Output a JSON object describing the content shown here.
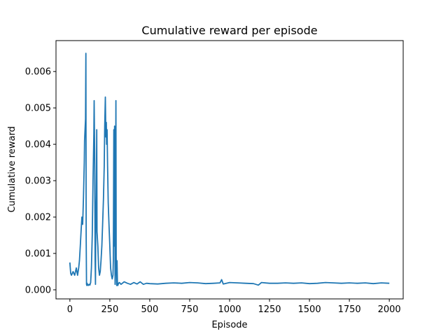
{
  "chart_data": {
    "type": "line",
    "title": "Cumulative reward per episode",
    "xlabel": "Episode",
    "ylabel": "Cumulative reward",
    "xlim": [
      -87,
      2087
    ],
    "ylim": [
      -0.00025,
      0.00685
    ],
    "x_ticks": [
      0,
      250,
      500,
      750,
      1000,
      1250,
      1500,
      1750,
      2000
    ],
    "x_tick_labels": [
      "0",
      "250",
      "500",
      "750",
      "1000",
      "1250",
      "1500",
      "1750",
      "2000"
    ],
    "y_ticks": [
      0.0,
      0.001,
      0.002,
      0.003,
      0.004,
      0.005,
      0.006
    ],
    "y_tick_labels": [
      "0.000",
      "0.001",
      "0.002",
      "0.003",
      "0.004",
      "0.005",
      "0.006"
    ],
    "grid": false,
    "legend": "none",
    "series": [
      {
        "color": "#1f77b4",
        "x": [
          0,
          5,
          10,
          20,
          30,
          40,
          48,
          55,
          60,
          65,
          70,
          75,
          80,
          85,
          90,
          92,
          95,
          98,
          100,
          102,
          104,
          106,
          108,
          110,
          115,
          120,
          125,
          130,
          135,
          140,
          145,
          150,
          152,
          155,
          158,
          160,
          162,
          165,
          168,
          170,
          175,
          180,
          185,
          190,
          195,
          200,
          205,
          210,
          215,
          218,
          222,
          225,
          228,
          230,
          233,
          236,
          240,
          245,
          250,
          255,
          260,
          265,
          270,
          272,
          275,
          278,
          280,
          283,
          285,
          288,
          290,
          293,
          295,
          298,
          300,
          305,
          310,
          320,
          340,
          360,
          380,
          400,
          420,
          440,
          460,
          480,
          500,
          550,
          600,
          650,
          700,
          750,
          800,
          850,
          900,
          940,
          950,
          960,
          1000,
          1050,
          1100,
          1150,
          1180,
          1200,
          1250,
          1300,
          1350,
          1400,
          1450,
          1500,
          1550,
          1600,
          1650,
          1700,
          1750,
          1800,
          1850,
          1900,
          1950,
          2000
        ],
        "y": [
          0.00075,
          0.00045,
          0.0004,
          0.0005,
          0.0004,
          0.0006,
          0.0004,
          0.0006,
          0.0008,
          0.0012,
          0.0016,
          0.002,
          0.0018,
          0.0025,
          0.0035,
          0.0041,
          0.0044,
          0.0047,
          0.0065,
          0.0015,
          0.00015,
          0.00012,
          0.00018,
          0.00015,
          0.00012,
          0.00015,
          0.00013,
          0.0002,
          0.0006,
          0.0015,
          0.003,
          0.0043,
          0.0052,
          0.0038,
          0.0008,
          0.00015,
          0.0018,
          0.0026,
          0.0044,
          0.0016,
          0.0012,
          0.0006,
          0.0004,
          0.0005,
          0.0008,
          0.0012,
          0.0018,
          0.0025,
          0.0034,
          0.0045,
          0.0053,
          0.0042,
          0.0046,
          0.004,
          0.0044,
          0.0034,
          0.0024,
          0.0018,
          0.0012,
          0.0006,
          0.0004,
          0.0003,
          0.0004,
          0.0008,
          0.0044,
          0.0012,
          0.0045,
          0.00015,
          0.0008,
          0.0052,
          0.0009,
          0.00012,
          0.0008,
          0.00015,
          0.00012,
          0.00018,
          0.0002,
          0.00015,
          0.00022,
          0.00018,
          0.00015,
          0.0002,
          0.00016,
          0.00022,
          0.00015,
          0.00018,
          0.00017,
          0.00016,
          0.00018,
          0.00019,
          0.00018,
          0.0002,
          0.00019,
          0.00017,
          0.00018,
          0.00019,
          0.00028,
          0.00016,
          0.0002,
          0.00019,
          0.00018,
          0.00017,
          0.00013,
          0.0002,
          0.00018,
          0.00018,
          0.00019,
          0.00018,
          0.00019,
          0.00017,
          0.00018,
          0.0002,
          0.00019,
          0.00018,
          0.00019,
          0.00018,
          0.00019,
          0.00017,
          0.00019,
          0.00018
        ]
      }
    ]
  }
}
